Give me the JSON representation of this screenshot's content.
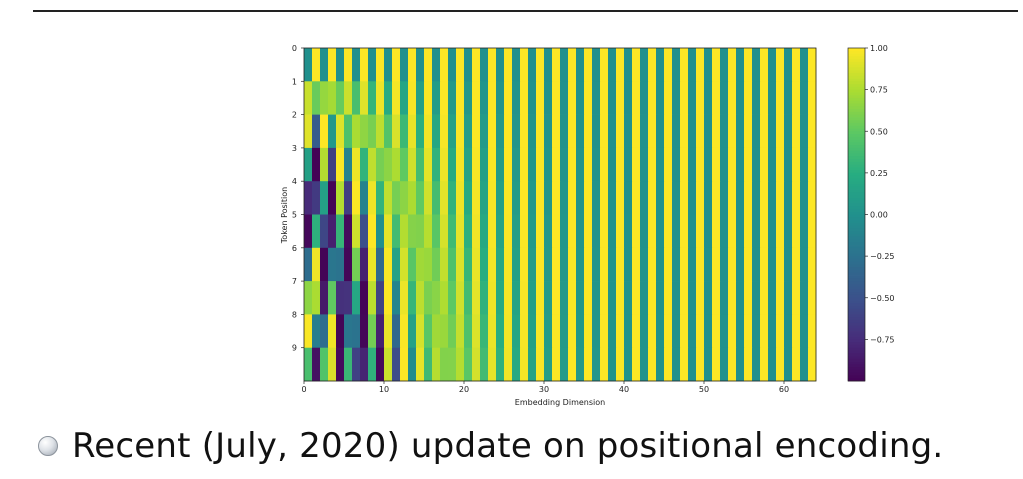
{
  "slide": {
    "bullet_text": "Recent (July, 2020) update on positional encoding."
  },
  "chart_data": {
    "type": "heatmap",
    "title": "",
    "xlabel": "Embedding Dimension",
    "ylabel": "Token Position",
    "x_ticks": [
      0,
      10,
      20,
      30,
      40,
      50,
      60
    ],
    "y_ticks": [
      0,
      1,
      2,
      3,
      4,
      5,
      6,
      7,
      8,
      9
    ],
    "positions": 10,
    "dimensions": 64,
    "value_range": [
      -1,
      1
    ],
    "colormap": "viridis",
    "colorbar_ticks": [
      "1.00",
      "0.75",
      "0.50",
      "0.25",
      "0.00",
      "−0.25",
      "−0.50",
      "−0.75"
    ],
    "colorbar_tick_values": [
      1.0,
      0.75,
      0.5,
      0.25,
      0.0,
      -0.25,
      -0.5,
      -0.75
    ],
    "encoding": "sinusoidal: even dims sin(pos/10000^(i/64)), odd dims cos(pos/10000^((i-1)/64))",
    "grid": false
  }
}
